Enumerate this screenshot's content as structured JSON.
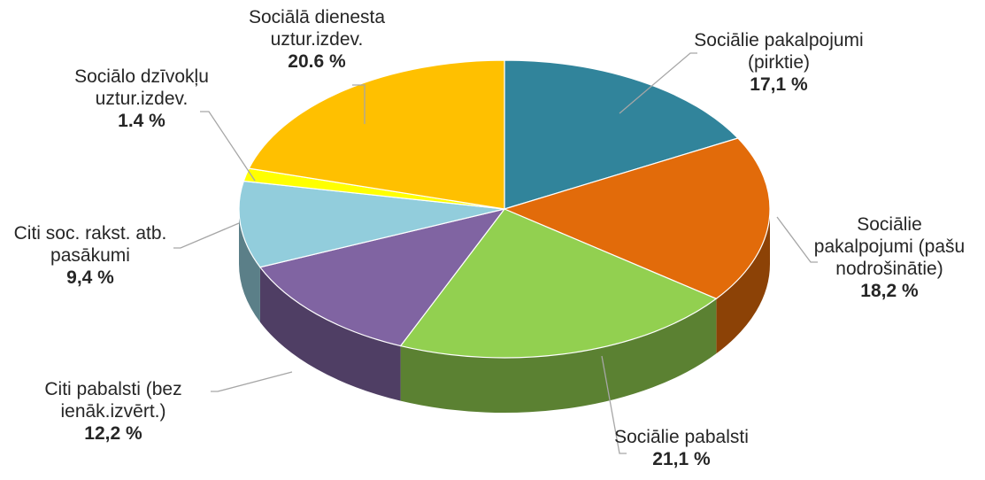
{
  "chart_data": {
    "type": "pie",
    "style": "3d-exploded",
    "title": "",
    "slices": [
      {
        "name": [
          "Sociālie pakalpojumi",
          "(pirktie)"
        ],
        "value_label": "17,1 %",
        "value": 17.1,
        "color": "#31849b"
      },
      {
        "name": [
          "Sociālie",
          "pakalpojumi (pašu",
          "nodrošinātie)"
        ],
        "value_label": "18,2 %",
        "value": 18.2,
        "color": "#e26b0a"
      },
      {
        "name": [
          "Sociālie pabalsti"
        ],
        "value_label": "21,1 %",
        "value": 21.1,
        "color": "#92d050"
      },
      {
        "name": [
          "Citi pabalsti (bez",
          "ienāk.izvērt.)"
        ],
        "value_label": "12,2 %",
        "value": 12.2,
        "color": "#8064a2"
      },
      {
        "name": [
          "Citi soc. rakst. atb.",
          "pasākumi"
        ],
        "value_label": "9,4 %",
        "value": 9.4,
        "color": "#92cddc"
      },
      {
        "name": [
          "Sociālo dzīvokļu",
          "uztur.izdev."
        ],
        "value_label": "1.4 %",
        "value": 1.4,
        "color": "#ffff00"
      },
      {
        "name": [
          "Sociālā dienesta",
          "uztur.izdev."
        ],
        "value_label": "20.6 %",
        "value": 20.6,
        "color": "#ffc000"
      }
    ]
  }
}
